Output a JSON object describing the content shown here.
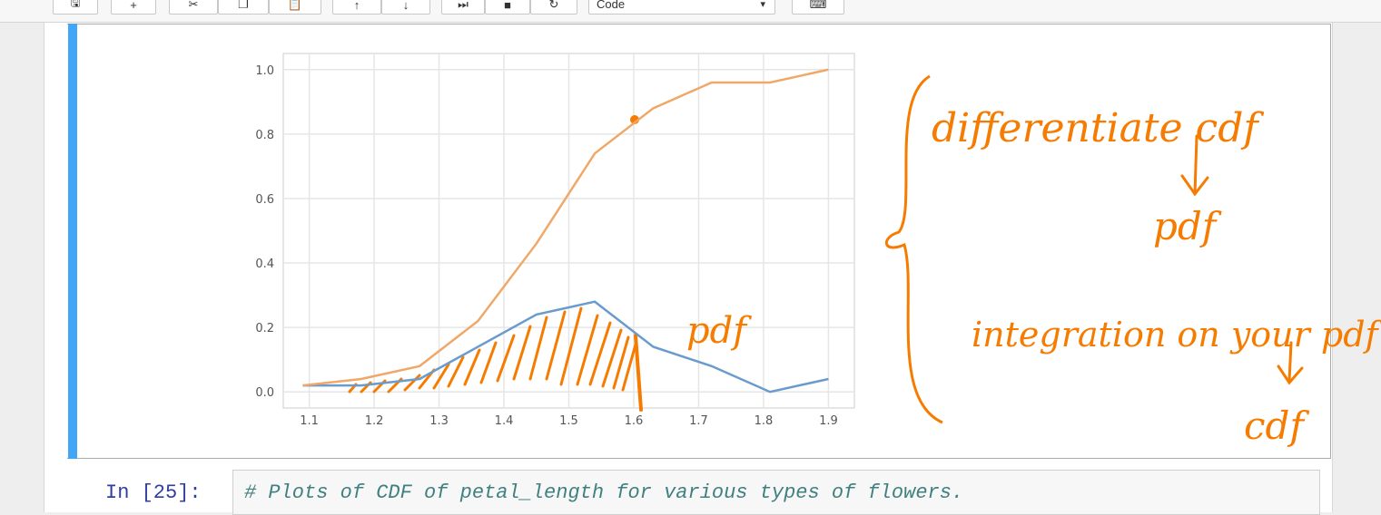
{
  "toolbar": {
    "buttons": [
      {
        "icon": "save-icon",
        "glyph": "🖫"
      },
      {
        "icon": "add-cell-icon",
        "glyph": "+"
      },
      {
        "icon": "cut-icon",
        "glyph": "✂"
      },
      {
        "icon": "copy-icon",
        "glyph": "❐"
      },
      {
        "icon": "paste-icon",
        "glyph": "📋"
      },
      {
        "icon": "move-up-icon",
        "glyph": "↑"
      },
      {
        "icon": "move-down-icon",
        "glyph": "↓"
      },
      {
        "icon": "run-icon",
        "glyph": "⏭"
      },
      {
        "icon": "stop-icon",
        "glyph": "■"
      },
      {
        "icon": "restart-icon",
        "glyph": "↻"
      },
      {
        "icon": "keyboard-icon",
        "glyph": "⌨"
      }
    ],
    "cell_type_value": "Code"
  },
  "chart_data": {
    "type": "line",
    "xlim": [
      1.06,
      1.94
    ],
    "ylim": [
      -0.05,
      1.05
    ],
    "xticks": [
      "1.1",
      "1.2",
      "1.3",
      "1.4",
      "1.5",
      "1.6",
      "1.7",
      "1.8",
      "1.9"
    ],
    "yticks": [
      "0.0",
      "0.2",
      "0.4",
      "0.6",
      "0.8",
      "1.0"
    ],
    "grid": true,
    "series": [
      {
        "color": "#6a9bcd",
        "x": [
          1.09,
          1.18,
          1.27,
          1.36,
          1.45,
          1.54,
          1.63,
          1.72,
          1.81,
          1.9
        ],
        "y": [
          0.02,
          0.02,
          0.04,
          0.14,
          0.24,
          0.28,
          0.14,
          0.08,
          0.0,
          0.04
        ]
      },
      {
        "color": "#f0a868",
        "x": [
          1.09,
          1.18,
          1.27,
          1.36,
          1.45,
          1.54,
          1.63,
          1.72,
          1.81,
          1.9
        ],
        "y": [
          0.02,
          0.04,
          0.08,
          0.22,
          0.46,
          0.74,
          0.88,
          0.96,
          0.96,
          1.0
        ]
      }
    ]
  },
  "annotations": {
    "pdf_label": "pdf",
    "line1": "differentiate cdf",
    "line2": "pdf",
    "line3": "integration on your pdf",
    "line4": "cdf",
    "color": "#f57c00"
  },
  "next_cell": {
    "prompt": "In [25]:",
    "code": "# Plots of CDF of petal_length for various types of flowers."
  }
}
